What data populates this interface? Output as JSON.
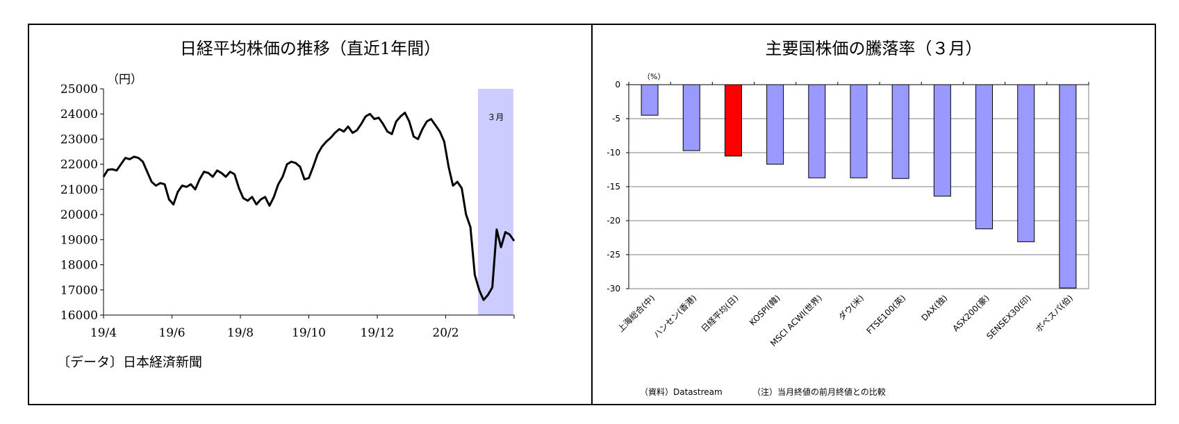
{
  "chart_data": [
    {
      "type": "line",
      "title": "日経平均株価の推移（直近1年間）",
      "ylabel": "（円）",
      "source": "〔データ〕日本経済新聞",
      "ylim": [
        16000,
        25000
      ],
      "yticks": [
        16000,
        17000,
        18000,
        19000,
        20000,
        21000,
        22000,
        23000,
        24000,
        25000
      ],
      "xlabels": [
        "19/4",
        "19/6",
        "19/8",
        "19/10",
        "19/12",
        "20/2"
      ],
      "highlight": {
        "label": "３月",
        "color": "#ccccff"
      },
      "line_color": "#000000",
      "series": [
        {
          "values": [
            21500,
            21780,
            21800,
            21750,
            22000,
            22250,
            22200,
            22300,
            22250,
            22100,
            21700,
            21300,
            21150,
            21250,
            21200,
            20600,
            20400,
            20900,
            21150,
            21100,
            21200,
            21000,
            21400,
            21700,
            21650,
            21500,
            21750,
            21650,
            21500,
            21700,
            21600,
            21050,
            20650,
            20550,
            20700,
            20400,
            20600,
            20700,
            20350,
            20700,
            21200,
            21500,
            22000,
            22100,
            22050,
            21900,
            21400,
            21450,
            21900,
            22400,
            22700,
            22900,
            23050,
            23250,
            23400,
            23300,
            23500,
            23250,
            23350,
            23600,
            23900,
            24000,
            23800,
            23850,
            23600,
            23300,
            23200,
            23700,
            23900,
            24050,
            23700,
            23100,
            23000,
            23400,
            23700,
            23800,
            23550,
            23300,
            22900,
            21900,
            21150,
            21300,
            21050,
            20000,
            19500,
            17600,
            17000,
            16600,
            16800,
            17100,
            19400,
            18700,
            19300,
            19200,
            18950
          ]
        }
      ]
    },
    {
      "type": "bar",
      "title": "主要国株価の騰落率（３月）",
      "ylabel": "（%）",
      "ylim": [
        -30,
        0
      ],
      "yticks": [
        0,
        -5,
        -10,
        -15,
        -20,
        -25,
        -30
      ],
      "categories": [
        "上海総合(中)",
        "ハンセン(香港)",
        "日経平均(日)",
        "KOSPI(韓)",
        "MSCI ACWI(世界)",
        "ダウ(米)",
        "FTSE100(英)",
        "DAX(独)",
        "ASX200(豪)",
        "SENSEX30(印)",
        "ボベスパ(伯)"
      ],
      "values": [
        -4.5,
        -9.7,
        -10.5,
        -11.7,
        -13.7,
        -13.7,
        -13.8,
        -16.4,
        -21.2,
        -23.1,
        -29.9
      ],
      "colors": [
        "#9999ff",
        "#9999ff",
        "#ff0000",
        "#9999ff",
        "#9999ff",
        "#9999ff",
        "#9999ff",
        "#9999ff",
        "#9999ff",
        "#9999ff",
        "#9999ff"
      ],
      "grid": true,
      "source": "（資料）Datastream",
      "note": "（注）当月終値の前月終値との比較"
    }
  ]
}
